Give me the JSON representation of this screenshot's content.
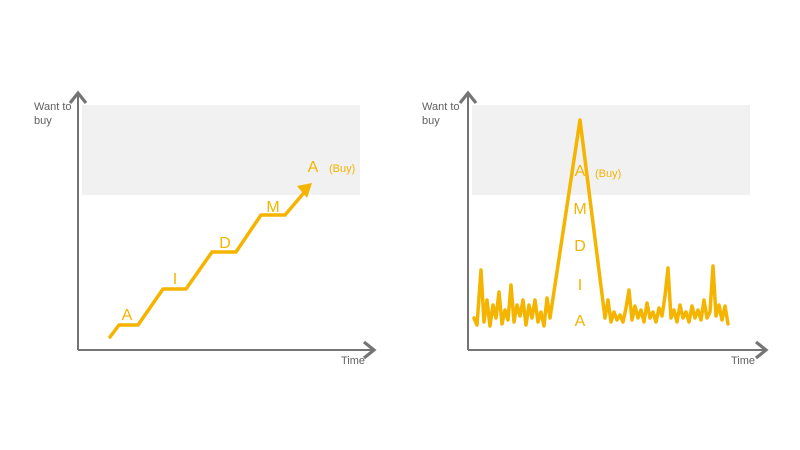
{
  "panels": [
    {
      "y_label_lines": [
        "Want to",
        "buy"
      ],
      "x_label": "Time",
      "stages": [
        "A",
        "I",
        "D",
        "M",
        "A"
      ],
      "buy_label": "(Buy)"
    },
    {
      "y_label_lines": [
        "Want to",
        "buy"
      ],
      "x_label": "Time",
      "stages": [
        "A",
        "M",
        "D",
        "I",
        "A"
      ],
      "buy_label": "(Buy)"
    }
  ]
}
